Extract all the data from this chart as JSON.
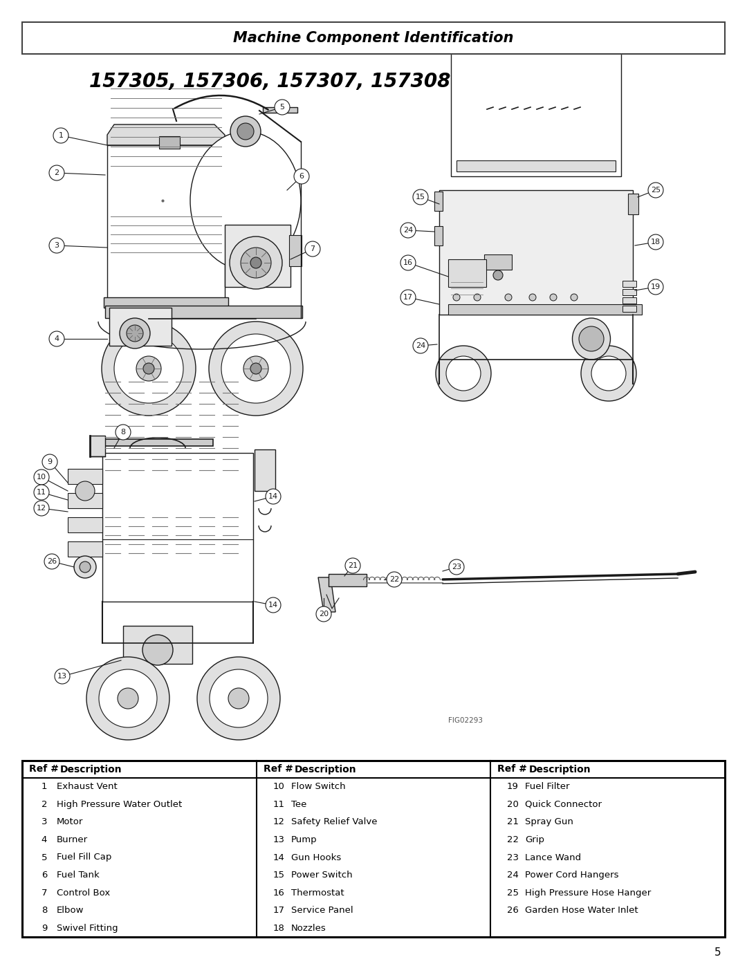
{
  "page_title": "Machine Component Identification",
  "model_numbers": "157305, 157306, 157307, 157308",
  "fig_label": "FIG02293",
  "page_number": "5",
  "background_color": "#ffffff",
  "table": {
    "col1": [
      [
        "1",
        "Exhaust Vent"
      ],
      [
        "2",
        "High Pressure Water Outlet"
      ],
      [
        "3",
        "Motor"
      ],
      [
        "4",
        "Burner"
      ],
      [
        "5",
        "Fuel Fill Cap"
      ],
      [
        "6",
        "Fuel Tank"
      ],
      [
        "7",
        "Control Box"
      ],
      [
        "8",
        "Elbow"
      ],
      [
        "9",
        "Swivel Fitting"
      ]
    ],
    "col2": [
      [
        "10",
        "Flow Switch"
      ],
      [
        "11",
        "Tee"
      ],
      [
        "12",
        "Safety Relief Valve"
      ],
      [
        "13",
        "Pump"
      ],
      [
        "14",
        "Gun Hooks"
      ],
      [
        "15",
        "Power Switch"
      ],
      [
        "16",
        "Thermostat"
      ],
      [
        "17",
        "Service Panel"
      ],
      [
        "18",
        "Nozzles"
      ]
    ],
    "col3": [
      [
        "19",
        "Fuel Filter"
      ],
      [
        "20",
        "Quick Connector"
      ],
      [
        "21",
        "Spray Gun"
      ],
      [
        "22",
        "Grip"
      ],
      [
        "23",
        "Lance Wand"
      ],
      [
        "24",
        "Power Cord Hangers"
      ],
      [
        "25",
        "High Pressure Hose Hanger"
      ],
      [
        "26",
        "Garden Hose Water Inlet"
      ]
    ]
  },
  "table_header": [
    "Ref #",
    "Description"
  ],
  "lw": 1.0,
  "lc": "#1a1a1a",
  "title_border_color": "#555555",
  "title_box_color": "#ffffff"
}
